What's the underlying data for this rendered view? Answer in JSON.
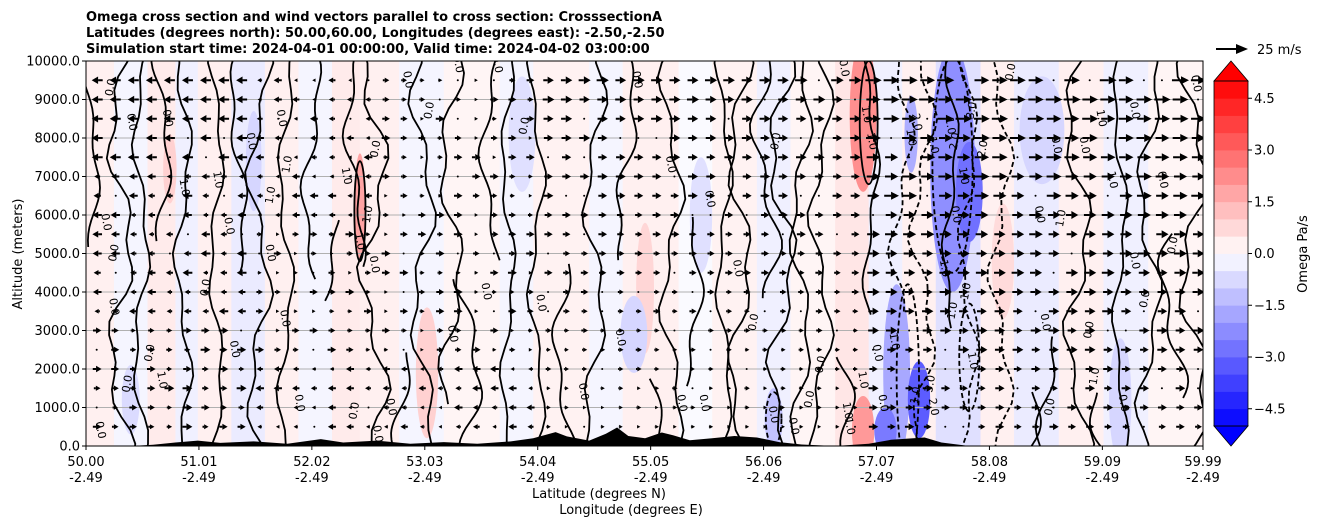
{
  "chart_data": {
    "type": "heatmap",
    "title_lines": [
      "Omega cross section and wind vectors parallel to cross section: CrosssectionA",
      "Latitudes (degrees north): 50.00,60.00, Longitudes (degrees east): -2.50,-2.50",
      "Simulation start time: 2024-04-01 00:00:00, Valid time: 2024-04-02 03:00:00"
    ],
    "ylabel": "Altitude (meters)",
    "xlabel_lines": [
      "Latitude (degrees N)",
      "Longitude (degrees E)"
    ],
    "ylim": [
      0,
      10000
    ],
    "xlim": [
      50.0,
      59.99
    ],
    "yticks": [
      {
        "value": 0,
        "label": "0.0"
      },
      {
        "value": 1000,
        "label": "1000.0"
      },
      {
        "value": 2000,
        "label": "2000.0"
      },
      {
        "value": 3000,
        "label": "3000.0"
      },
      {
        "value": 4000,
        "label": "4000.0"
      },
      {
        "value": 5000,
        "label": "5000.0"
      },
      {
        "value": 6000,
        "label": "6000.0"
      },
      {
        "value": 7000,
        "label": "7000.0"
      },
      {
        "value": 8000,
        "label": "8000.0"
      },
      {
        "value": 9000,
        "label": "9000.0"
      },
      {
        "value": 10000,
        "label": "10000.0"
      }
    ],
    "xticks": [
      {
        "value": 50.0,
        "lat": "50.00",
        "lon": "-2.49"
      },
      {
        "value": 51.01,
        "lat": "51.01",
        "lon": "-2.49"
      },
      {
        "value": 52.02,
        "lat": "52.02",
        "lon": "-2.49"
      },
      {
        "value": 53.03,
        "lat": "53.03",
        "lon": "-2.49"
      },
      {
        "value": 54.04,
        "lat": "54.04",
        "lon": "-2.49"
      },
      {
        "value": 55.05,
        "lat": "55.05",
        "lon": "-2.49"
      },
      {
        "value": 56.06,
        "lat": "56.06",
        "lon": "-2.49"
      },
      {
        "value": 57.07,
        "lat": "57.07",
        "lon": "-2.49"
      },
      {
        "value": 58.08,
        "lat": "58.08",
        "lon": "-2.49"
      },
      {
        "value": 59.09,
        "lat": "59.09",
        "lon": "-2.49"
      },
      {
        "value": 59.99,
        "lat": "59.99",
        "lon": "-2.49"
      }
    ],
    "grid": "horizontal",
    "colorbar": {
      "label": "Omega Pa/s",
      "range": [
        -5.0,
        5.0
      ],
      "ticks": [
        {
          "value": 4.5,
          "label": "4.5"
        },
        {
          "value": 3.0,
          "label": "3.0"
        },
        {
          "value": 1.5,
          "label": "1.5"
        },
        {
          "value": 0.0,
          "label": "0.0"
        },
        {
          "value": -1.5,
          "label": "−1.5"
        },
        {
          "value": -3.0,
          "label": "−3.0"
        },
        {
          "value": -4.5,
          "label": "−4.5"
        }
      ],
      "extend": "both",
      "colormap": "bwr",
      "low_color": "#0000ff",
      "high_color": "#ff0000"
    },
    "quiver_key": {
      "label": "25 m/s",
      "speed": 25
    },
    "contour_labels": [
      {
        "text": "0.0",
        "lat": 50.25,
        "alt": 9300
      },
      {
        "text": "0.0",
        "lat": 50.38,
        "alt": 8400
      },
      {
        "text": "0.0",
        "lat": 50.7,
        "alt": 8500
      },
      {
        "text": "0.0",
        "lat": 50.15,
        "alt": 5800
      },
      {
        "text": "0.0",
        "lat": 50.28,
        "alt": 5000
      },
      {
        "text": "0.0",
        "lat": 50.22,
        "alt": 3600
      },
      {
        "text": "0.0",
        "lat": 50.4,
        "alt": 1600
      },
      {
        "text": "0.0",
        "lat": 50.6,
        "alt": 2400
      },
      {
        "text": "1.0",
        "lat": 50.65,
        "alt": 1700
      },
      {
        "text": "0.0",
        "lat": 50.1,
        "alt": 400
      },
      {
        "text": "1.0",
        "lat": 50.85,
        "alt": 6700
      },
      {
        "text": "1.0",
        "lat": 51.15,
        "alt": 6900
      },
      {
        "text": "0.0",
        "lat": 51.25,
        "alt": 5700
      },
      {
        "text": "0.0",
        "lat": 51.45,
        "alt": 7900
      },
      {
        "text": "0.0",
        "lat": 51.1,
        "alt": 4100
      },
      {
        "text": "0.0",
        "lat": 51.3,
        "alt": 2500
      },
      {
        "text": "1.0",
        "lat": 51.68,
        "alt": 6500
      },
      {
        "text": "1.0",
        "lat": 51.83,
        "alt": 7300
      },
      {
        "text": "0.0",
        "lat": 51.72,
        "alt": 8500
      },
      {
        "text": "0.0",
        "lat": 51.62,
        "alt": 5000
      },
      {
        "text": "0.0",
        "lat": 51.75,
        "alt": 3300
      },
      {
        "text": "0.0",
        "lat": 51.88,
        "alt": 1100
      },
      {
        "text": "1.0",
        "lat": 52.3,
        "alt": 7000
      },
      {
        "text": "1.0",
        "lat": 52.42,
        "alt": 5300
      },
      {
        "text": "1.0",
        "lat": 52.55,
        "alt": 6000
      },
      {
        "text": "0.0",
        "lat": 52.55,
        "alt": 4700
      },
      {
        "text": "0.0",
        "lat": 52.62,
        "alt": 7700
      },
      {
        "text": "0.0",
        "lat": 52.43,
        "alt": 900
      },
      {
        "text": "0.0",
        "lat": 52.58,
        "alt": 300
      },
      {
        "text": "0.0",
        "lat": 52.7,
        "alt": 1000
      },
      {
        "text": "0.0",
        "lat": 52.85,
        "alt": 9500
      },
      {
        "text": "0.0",
        "lat": 53.1,
        "alt": 8700
      },
      {
        "text": "0.0",
        "lat": 53.25,
        "alt": 2900
      },
      {
        "text": "0.0",
        "lat": 53.55,
        "alt": 4000
      },
      {
        "text": "0.0",
        "lat": 53.65,
        "alt": 9900
      },
      {
        "text": "0.0",
        "lat": 53.3,
        "alt": 9900
      },
      {
        "text": "0.0",
        "lat": 53.95,
        "alt": 8300
      },
      {
        "text": "0.0",
        "lat": 54.04,
        "alt": 3700
      },
      {
        "text": "0.0",
        "lat": 54.42,
        "alt": 1400
      },
      {
        "text": "0.0",
        "lat": 54.75,
        "alt": 2800
      },
      {
        "text": "0.0",
        "lat": 54.9,
        "alt": 9500
      },
      {
        "text": "0.0",
        "lat": 55.2,
        "alt": 7300
      },
      {
        "text": "0.0",
        "lat": 55.3,
        "alt": 1100
      },
      {
        "text": "0.0",
        "lat": 55.5,
        "alt": 1100
      },
      {
        "text": "0.0",
        "lat": 55.55,
        "alt": 6400
      },
      {
        "text": "0.0",
        "lat": 55.8,
        "alt": 4600
      },
      {
        "text": "0.0",
        "lat": 56.2,
        "alt": 7900
      },
      {
        "text": "0.0",
        "lat": 56.0,
        "alt": 3200
      },
      {
        "text": "0.0",
        "lat": 56.12,
        "alt": 800
      },
      {
        "text": "0.0",
        "lat": 56.3,
        "alt": 500
      },
      {
        "text": "0.0",
        "lat": 56.5,
        "alt": 1200
      },
      {
        "text": "0.0",
        "lat": 56.6,
        "alt": 2100
      },
      {
        "text": "0.0",
        "lat": 56.75,
        "alt": 9800
      },
      {
        "text": "1.0",
        "lat": 56.95,
        "alt": 8600
      },
      {
        "text": "1.0",
        "lat": 57.0,
        "alt": 7900
      },
      {
        "text": "1.0",
        "lat": 56.78,
        "alt": 900
      },
      {
        "text": "1.0",
        "lat": 56.8,
        "alt": 500
      },
      {
        "text": "1.0",
        "lat": 56.92,
        "alt": 1700
      },
      {
        "text": "0.0",
        "lat": 57.1,
        "alt": 1100
      },
      {
        "text": "0.0",
        "lat": 57.05,
        "alt": 2400
      },
      {
        "text": "1.0",
        "lat": 57.2,
        "alt": 2700
      },
      {
        "text": "1.0",
        "lat": 57.35,
        "alt": 8000
      },
      {
        "text": "2.0",
        "lat": 57.4,
        "alt": 8400
      },
      {
        "text": "1.0",
        "lat": 57.45,
        "alt": 1300
      },
      {
        "text": "2.0",
        "lat": 57.55,
        "alt": 1000
      },
      {
        "text": "3.0",
        "lat": 57.58,
        "alt": 1600
      },
      {
        "text": "1.0",
        "lat": 57.55,
        "alt": 7800
      },
      {
        "text": "1.0",
        "lat": 57.7,
        "alt": 8300
      },
      {
        "text": "2.0",
        "lat": 57.8,
        "alt": 7900
      },
      {
        "text": "3.0",
        "lat": 57.95,
        "alt": 8700
      },
      {
        "text": "2.0",
        "lat": 58.05,
        "alt": 7700
      },
      {
        "text": "1.0",
        "lat": 57.82,
        "alt": 7000
      },
      {
        "text": "0.0",
        "lat": 57.75,
        "alt": 6000
      },
      {
        "text": "1.0",
        "lat": 57.65,
        "alt": 4600
      },
      {
        "text": "1.0",
        "lat": 57.78,
        "alt": 3500
      },
      {
        "text": "1.0",
        "lat": 57.9,
        "alt": 4000
      },
      {
        "text": "1.0",
        "lat": 57.9,
        "alt": 2200
      },
      {
        "text": "0.0",
        "lat": 58.3,
        "alt": 9700
      },
      {
        "text": "0.0",
        "lat": 58.5,
        "alt": 6000
      },
      {
        "text": "0.0",
        "lat": 58.65,
        "alt": 7800
      },
      {
        "text": "0.0",
        "lat": 58.55,
        "alt": 3200
      },
      {
        "text": "0.0",
        "lat": 58.65,
        "alt": 1000
      },
      {
        "text": "1.0",
        "lat": 58.75,
        "alt": 5900
      },
      {
        "text": "0.0",
        "lat": 58.9,
        "alt": 7800
      },
      {
        "text": "0.0",
        "lat": 59.0,
        "alt": 3000
      },
      {
        "text": "1.0",
        "lat": 59.05,
        "alt": 1800
      },
      {
        "text": "1.0",
        "lat": 59.15,
        "alt": 6900
      },
      {
        "text": "1.0",
        "lat": 59.05,
        "alt": 8500
      },
      {
        "text": "0.0",
        "lat": 59.25,
        "alt": 1100
      },
      {
        "text": "0.0",
        "lat": 59.35,
        "alt": 8700
      },
      {
        "text": "0.0",
        "lat": 59.35,
        "alt": 4800
      },
      {
        "text": "0.0",
        "lat": 59.5,
        "alt": 3800
      },
      {
        "text": "0.0",
        "lat": 59.6,
        "alt": 6900
      },
      {
        "text": "0.0",
        "lat": 59.75,
        "alt": 5200
      },
      {
        "text": "0.0",
        "lat": 59.9,
        "alt": 9400
      }
    ]
  }
}
